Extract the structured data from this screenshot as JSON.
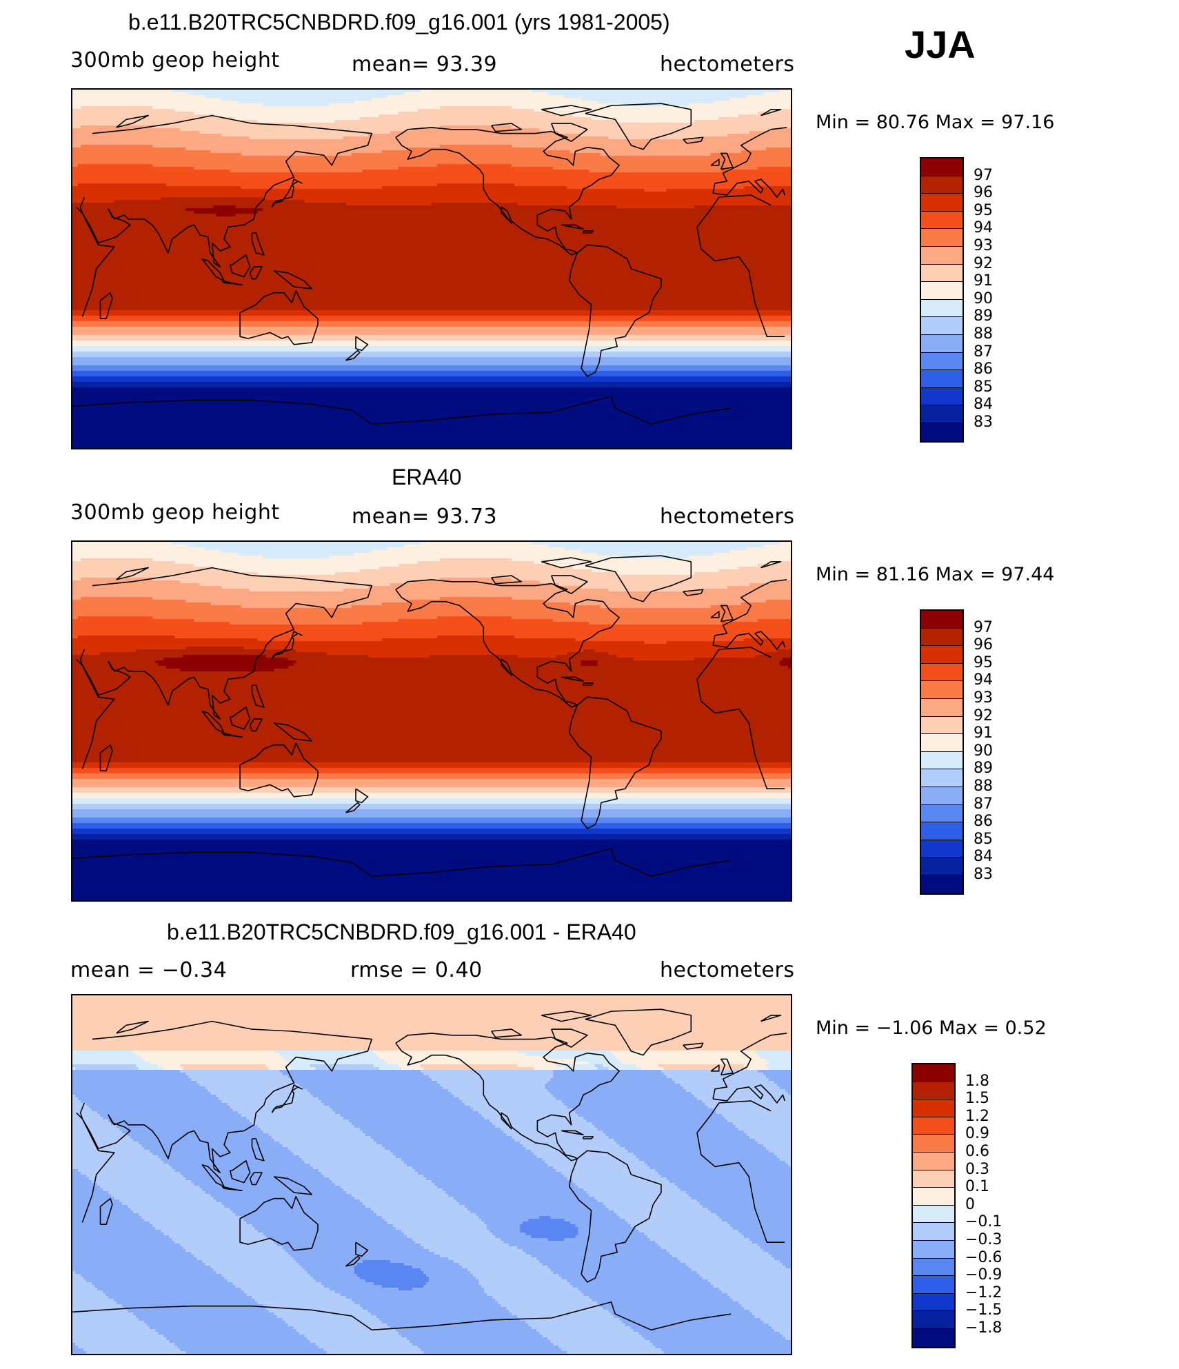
{
  "season": "JJA",
  "panels": [
    {
      "title": "b.e11.B20TRC5CNBDRD.f09_g16.001 (yrs 1981-2005)",
      "left_label": "300mb geop height",
      "center_label": "mean=   93.39",
      "right_label": "hectometers",
      "minmax": "Min =   80.76  Max =   97.16",
      "field": "model"
    },
    {
      "title": "ERA40",
      "left_label": "300mb geop height",
      "center_label": "mean=   93.73",
      "right_label": "hectometers",
      "minmax": "Min =   81.16  Max =   97.44",
      "field": "obs"
    },
    {
      "title": "b.e11.B20TRC5CNBDRD.f09_g16.001 - ERA40",
      "left_label": "mean =   −0.34",
      "center_label": "rmse =     0.40",
      "right_label": "hectometers",
      "minmax": "Min =   −1.06  Max =     0.52",
      "field": "diff"
    }
  ],
  "colorbars": {
    "abs": {
      "labels": [
        "97",
        "96",
        "95",
        "94",
        "93",
        "92",
        "91",
        "90",
        "89",
        "88",
        "87",
        "86",
        "85",
        "84",
        "83"
      ],
      "colors": [
        "#8b0000",
        "#b22100",
        "#d83000",
        "#f5501c",
        "#fa7a48",
        "#fca882",
        "#fdcfb4",
        "#fdf0e0",
        "#d7ecfa",
        "#b3cdfa",
        "#8aadf8",
        "#5a86f2",
        "#2f5ee8",
        "#1038cc",
        "#06229e",
        "#000c80"
      ]
    },
    "diff": {
      "labels": [
        "1.8",
        "1.5",
        "1.2",
        "0.9",
        "0.6",
        "0.3",
        "0.1",
        "0",
        "−0.1",
        "−0.3",
        "−0.6",
        "−0.9",
        "−1.2",
        "−1.5",
        "−1.8"
      ],
      "colors": [
        "#8b0000",
        "#b22100",
        "#d83000",
        "#f5501c",
        "#fa7a48",
        "#fca882",
        "#fdcfb4",
        "#fdf0e0",
        "#d7ecfa",
        "#b3cdfa",
        "#8aadf8",
        "#5a86f2",
        "#2f5ee8",
        "#1038cc",
        "#06229e",
        "#000c80"
      ]
    }
  }
}
